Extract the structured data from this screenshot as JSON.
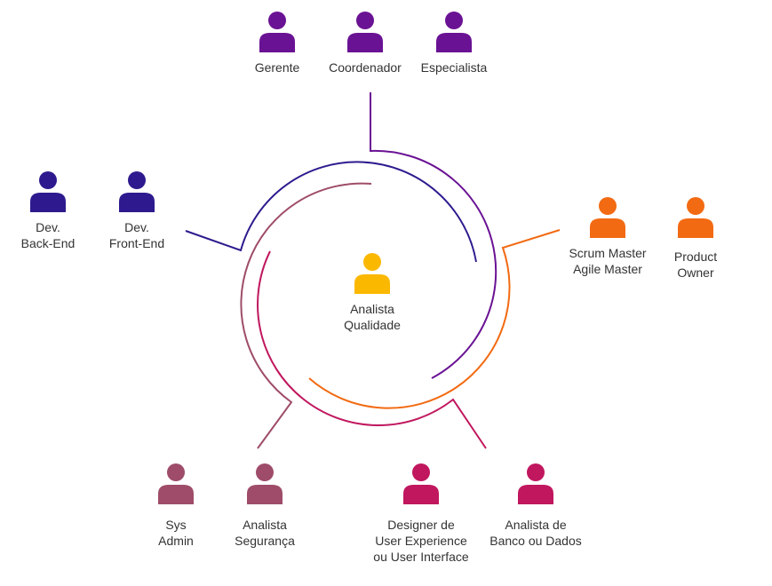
{
  "colors": {
    "management": "#6a1294",
    "developer": "#2e1a8e",
    "agile": "#f26a12",
    "infra": "#9e4c69",
    "design_data": "#c0175e",
    "quality": "#fbb800",
    "text": "#333333"
  },
  "center": {
    "label": "Analista\nQualidade",
    "icon": "person-icon"
  },
  "groups": [
    {
      "group": "management",
      "roles": [
        {
          "label": "Gerente",
          "icon": "person-icon"
        },
        {
          "label": "Coordenador",
          "icon": "person-icon"
        },
        {
          "label": "Especialista",
          "icon": "person-icon"
        }
      ]
    },
    {
      "group": "developer",
      "roles": [
        {
          "label": "Dev.\nBack-End",
          "icon": "person-icon"
        },
        {
          "label": "Dev.\nFront-End",
          "icon": "person-icon"
        }
      ]
    },
    {
      "group": "agile",
      "roles": [
        {
          "label": "Scrum Master\nAgile Master",
          "icon": "person-icon"
        },
        {
          "label": "Product\nOwner",
          "icon": "person-icon"
        }
      ]
    },
    {
      "group": "infra",
      "roles": [
        {
          "label": "Sys\nAdmin",
          "icon": "person-icon"
        },
        {
          "label": "Analista\nSegurança",
          "icon": "person-icon"
        }
      ]
    },
    {
      "group": "design_data",
      "roles": [
        {
          "label": "Designer de\nUser Experience\nou User Interface",
          "icon": "person-icon"
        },
        {
          "label": "Analista de\nBanco ou Dados",
          "icon": "person-icon"
        }
      ]
    }
  ]
}
